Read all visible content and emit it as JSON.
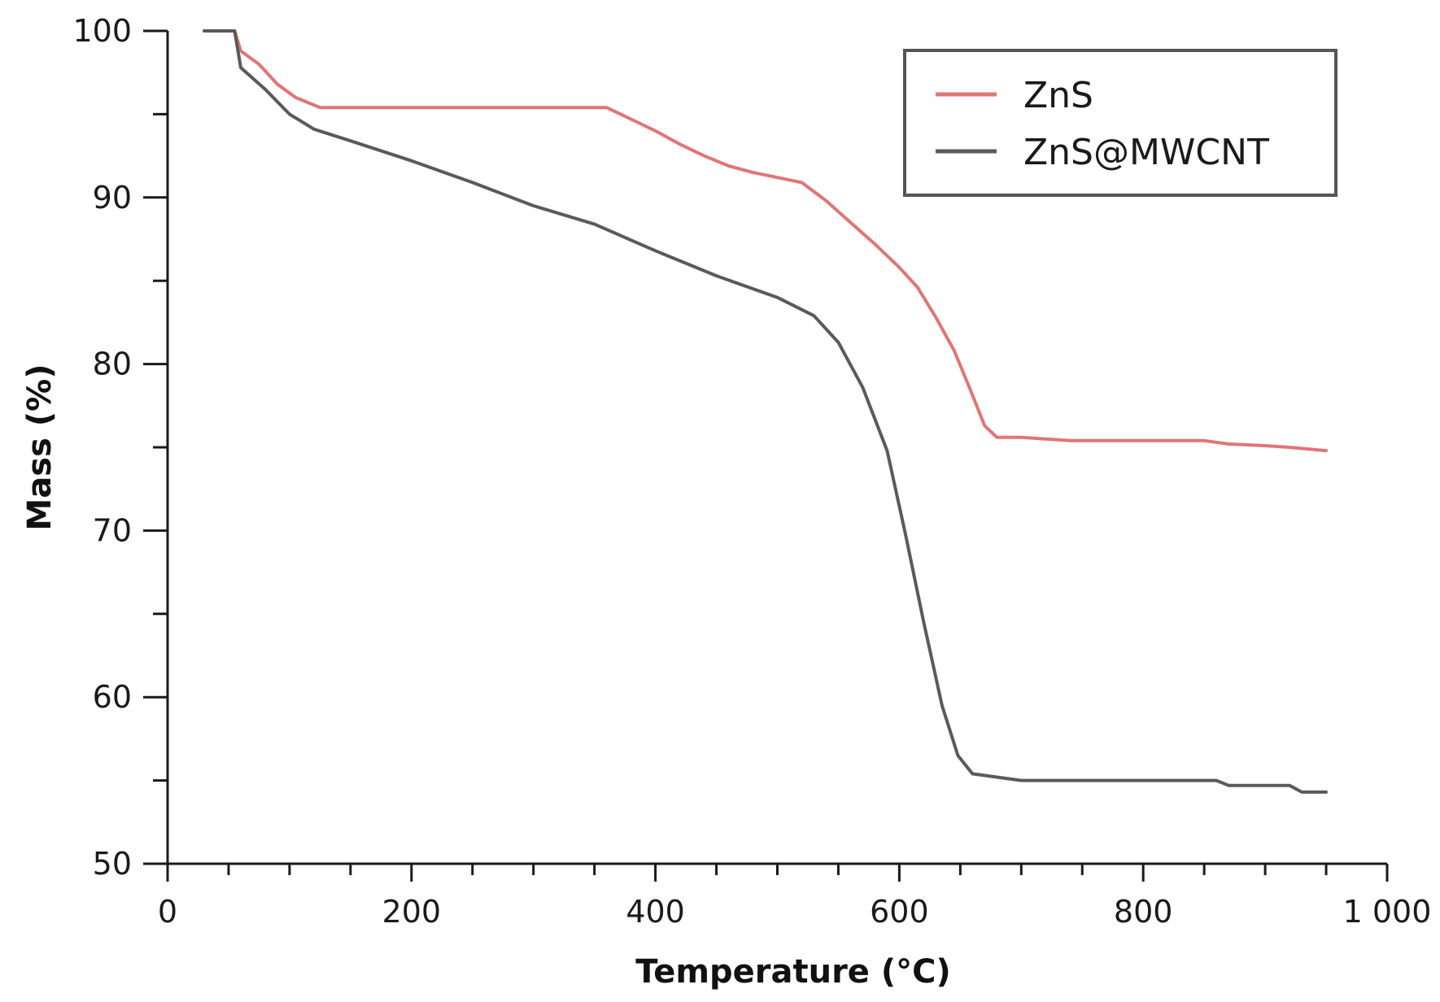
{
  "chart_data": {
    "type": "line",
    "title": "",
    "xlabel": "Temperature (°C)",
    "ylabel": "Mass (%)",
    "xlim": [
      0,
      1000
    ],
    "ylim": [
      50,
      100
    ],
    "x_ticks": [
      0,
      200,
      400,
      600,
      800,
      1000
    ],
    "x_tick_labels": [
      "0",
      "200",
      "400",
      "600",
      "800",
      "1 000"
    ],
    "x_minor_step": 50,
    "y_ticks": [
      50,
      60,
      70,
      80,
      90,
      100
    ],
    "y_tick_labels": [
      "50",
      "60",
      "70",
      "80",
      "90",
      "100"
    ],
    "y_minor_step": 5,
    "grid": false,
    "legend_position": "top-right",
    "series": [
      {
        "name": "ZnS",
        "color": "#e07575",
        "points": [
          [
            30,
            100
          ],
          [
            55,
            100
          ],
          [
            60,
            98.8
          ],
          [
            75,
            98.0
          ],
          [
            90,
            96.8
          ],
          [
            105,
            96.0
          ],
          [
            125,
            95.4
          ],
          [
            200,
            95.4
          ],
          [
            300,
            95.4
          ],
          [
            360,
            95.4
          ],
          [
            380,
            94.7
          ],
          [
            400,
            94.0
          ],
          [
            420,
            93.2
          ],
          [
            440,
            92.5
          ],
          [
            460,
            91.9
          ],
          [
            480,
            91.5
          ],
          [
            500,
            91.2
          ],
          [
            520,
            90.9
          ],
          [
            540,
            89.8
          ],
          [
            560,
            88.5
          ],
          [
            580,
            87.2
          ],
          [
            600,
            85.8
          ],
          [
            615,
            84.6
          ],
          [
            630,
            82.8
          ],
          [
            645,
            80.8
          ],
          [
            658,
            78.5
          ],
          [
            670,
            76.3
          ],
          [
            680,
            75.6
          ],
          [
            700,
            75.6
          ],
          [
            740,
            75.4
          ],
          [
            800,
            75.4
          ],
          [
            850,
            75.4
          ],
          [
            870,
            75.2
          ],
          [
            900,
            75.1
          ],
          [
            920,
            75.0
          ],
          [
            950,
            74.8
          ]
        ]
      },
      {
        "name": "ZnS@MWCNT",
        "color": "#5a5a5a",
        "points": [
          [
            30,
            100
          ],
          [
            55,
            100
          ],
          [
            60,
            97.8
          ],
          [
            80,
            96.5
          ],
          [
            100,
            95.0
          ],
          [
            120,
            94.1
          ],
          [
            150,
            93.4
          ],
          [
            200,
            92.2
          ],
          [
            250,
            90.9
          ],
          [
            300,
            89.5
          ],
          [
            350,
            88.4
          ],
          [
            400,
            86.8
          ],
          [
            450,
            85.3
          ],
          [
            500,
            84.0
          ],
          [
            530,
            82.9
          ],
          [
            550,
            81.3
          ],
          [
            570,
            78.6
          ],
          [
            590,
            74.8
          ],
          [
            605,
            69.8
          ],
          [
            620,
            64.5
          ],
          [
            635,
            59.5
          ],
          [
            648,
            56.5
          ],
          [
            660,
            55.4
          ],
          [
            680,
            55.2
          ],
          [
            700,
            55.0
          ],
          [
            800,
            55.0
          ],
          [
            860,
            55.0
          ],
          [
            870,
            54.7
          ],
          [
            920,
            54.7
          ],
          [
            930,
            54.3
          ],
          [
            950,
            54.3
          ]
        ]
      }
    ]
  }
}
